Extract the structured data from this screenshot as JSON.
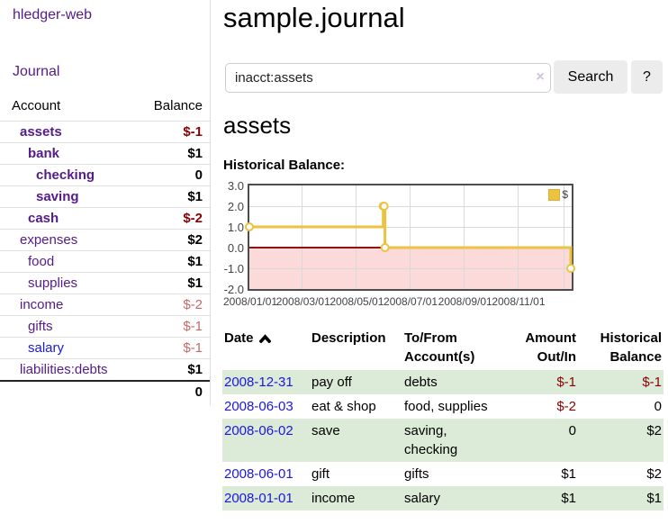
{
  "colors": {
    "purple_link": "#551a8b",
    "blue_link": "#1b16e0",
    "negative_strong": "#8b0000",
    "negative_soft": "#c46a6a",
    "row_green": "#dcebd8",
    "chart_series_gold": "#edc240",
    "chart_negative_fill": "#fcdada",
    "chart_zero_line": "#8e1212",
    "chart_border": "#4d4d4d",
    "grid_line": "#d9d9d9",
    "button_bg": "#ececec"
  },
  "sidebar": {
    "app_title": "hledger-web",
    "journal_link": "Journal",
    "table": {
      "col_account": "Account",
      "col_balance": "Balance",
      "rows": [
        {
          "name": "assets",
          "balance": "$-1",
          "level": 1,
          "bold": true,
          "balance_style": "neg-strong"
        },
        {
          "name": "bank",
          "balance": "$1",
          "level": 2,
          "bold": true,
          "balance_style": "pos"
        },
        {
          "name": "checking",
          "balance": "0",
          "level": 3,
          "bold": true,
          "balance_style": "pos"
        },
        {
          "name": "saving",
          "balance": "$1",
          "level": 3,
          "bold": true,
          "balance_style": "pos"
        },
        {
          "name": "cash",
          "balance": "$-2",
          "level": 2,
          "bold": true,
          "balance_style": "neg-strong"
        },
        {
          "name": "expenses",
          "balance": "$2",
          "level": 1,
          "bold": false,
          "balance_style": "pos"
        },
        {
          "name": "food",
          "balance": "$1",
          "level": 2,
          "bold": false,
          "balance_style": "pos"
        },
        {
          "name": "supplies",
          "balance": "$1",
          "level": 2,
          "bold": false,
          "balance_style": "pos"
        },
        {
          "name": "income",
          "balance": "$-2",
          "level": 1,
          "bold": false,
          "balance_style": "neg-soft"
        },
        {
          "name": "gifts",
          "balance": "$-1",
          "level": 2,
          "bold": false,
          "balance_style": "neg-soft"
        },
        {
          "name": "salary",
          "balance": "$-1",
          "level": 2,
          "bold": false,
          "balance_style": "neg-soft",
          "link_color": "blue"
        },
        {
          "name": "liabilities:debts",
          "balance": "$1",
          "level": 1,
          "bold": false,
          "balance_style": "pos"
        }
      ],
      "total": "0"
    }
  },
  "main": {
    "title": "sample.journal",
    "search": {
      "value": "inacct:assets",
      "clear_icon": "×",
      "button": "Search",
      "help": "?"
    },
    "heading": "assets",
    "chart_label": "Historical Balance:"
  },
  "chart_data": {
    "type": "line",
    "step": true,
    "title": "Historical Balance:",
    "x_domain": [
      "2008-01-01",
      "2009-01-01"
    ],
    "x": [
      "2008-01-01",
      "2008-06-01",
      "2008-06-02",
      "2008-06-03",
      "2008-12-31"
    ],
    "series": [
      {
        "name": "$",
        "color": "#edc240",
        "values": [
          1,
          2,
          2,
          0,
          -1
        ]
      }
    ],
    "ylim": [
      -2,
      3
    ],
    "y_ticks": [
      "3.0",
      "2.0",
      "1.0",
      "0.0",
      "-1.0",
      "-2.0"
    ],
    "x_tick_labels": [
      "2008/01/01",
      "2008/03/01",
      "2008/05/01",
      "2008/07/01",
      "2008/09/01",
      "2008/11/01"
    ],
    "x_tick_dates": [
      "2008-01-01",
      "2008-03-01",
      "2008-05-01",
      "2008-07-01",
      "2008-09-01",
      "2008-11-01"
    ],
    "grid": true,
    "extra_gridline_fraction": 0.975,
    "legend": {
      "label": "$",
      "position": "top-right"
    },
    "negative_region_shaded": true
  },
  "register": {
    "headers": {
      "date": "Date",
      "sort_icon": "chevron-up",
      "description": "Description",
      "account_l1": "To/From",
      "account_l2": "Account(s)",
      "amount_l1": "Amount",
      "amount_l2": "Out/In",
      "balance_l1": "Historical",
      "balance_l2": "Balance"
    },
    "rows": [
      {
        "date": "2008-12-31",
        "description": "pay off",
        "accounts": [
          "debts"
        ],
        "amount": "$-1",
        "amount_negative": true,
        "balance": "$-1",
        "balance_negative": true,
        "shaded": true
      },
      {
        "date": "2008-06-03",
        "description": "eat & shop",
        "accounts": [
          "food, supplies"
        ],
        "amount": "$-2",
        "amount_negative": true,
        "balance": "0",
        "balance_negative": false,
        "shaded": false
      },
      {
        "date": "2008-06-02",
        "description": "save",
        "accounts": [
          "saving,",
          "checking"
        ],
        "amount": "0",
        "amount_negative": false,
        "balance": "$2",
        "balance_negative": false,
        "shaded": true
      },
      {
        "date": "2008-06-01",
        "description": "gift",
        "accounts": [
          "gifts"
        ],
        "amount": "$1",
        "amount_negative": false,
        "balance": "$2",
        "balance_negative": false,
        "shaded": false
      },
      {
        "date": "2008-01-01",
        "description": "income",
        "accounts": [
          "salary"
        ],
        "amount": "$1",
        "amount_negative": false,
        "balance": "$1",
        "balance_negative": false,
        "shaded": true
      }
    ]
  }
}
